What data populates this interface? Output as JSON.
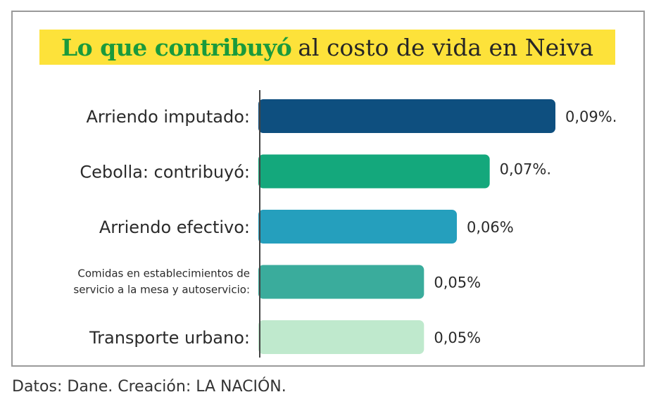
{
  "chart_data": {
    "type": "bar",
    "orientation": "horizontal",
    "title_bold": "Lo que contribuyó",
    "title_rest": "al costo de vida en Neiva",
    "categories": [
      [
        "Arriendo imputado:"
      ],
      [
        "Cebolla: contribuyó:"
      ],
      [
        "Arriendo efectivo:"
      ],
      [
        "Comidas en establecimientos de",
        "servicio a la mesa y autoservicio:"
      ],
      [
        "Transporte urbano:"
      ]
    ],
    "values": [
      0.09,
      0.07,
      0.06,
      0.05,
      0.05
    ],
    "value_labels": [
      "0,09%.",
      "0,07%.",
      "0,06%",
      "0,05%",
      "0,05%"
    ],
    "colors": [
      "#0e4f7f",
      "#14a87c",
      "#259fbd",
      "#3aac9c",
      "#bfe9cd"
    ],
    "unit": "%",
    "grid": false,
    "legend": "none"
  },
  "source": "Datos: Dane. Creación: LA NACIÓN."
}
